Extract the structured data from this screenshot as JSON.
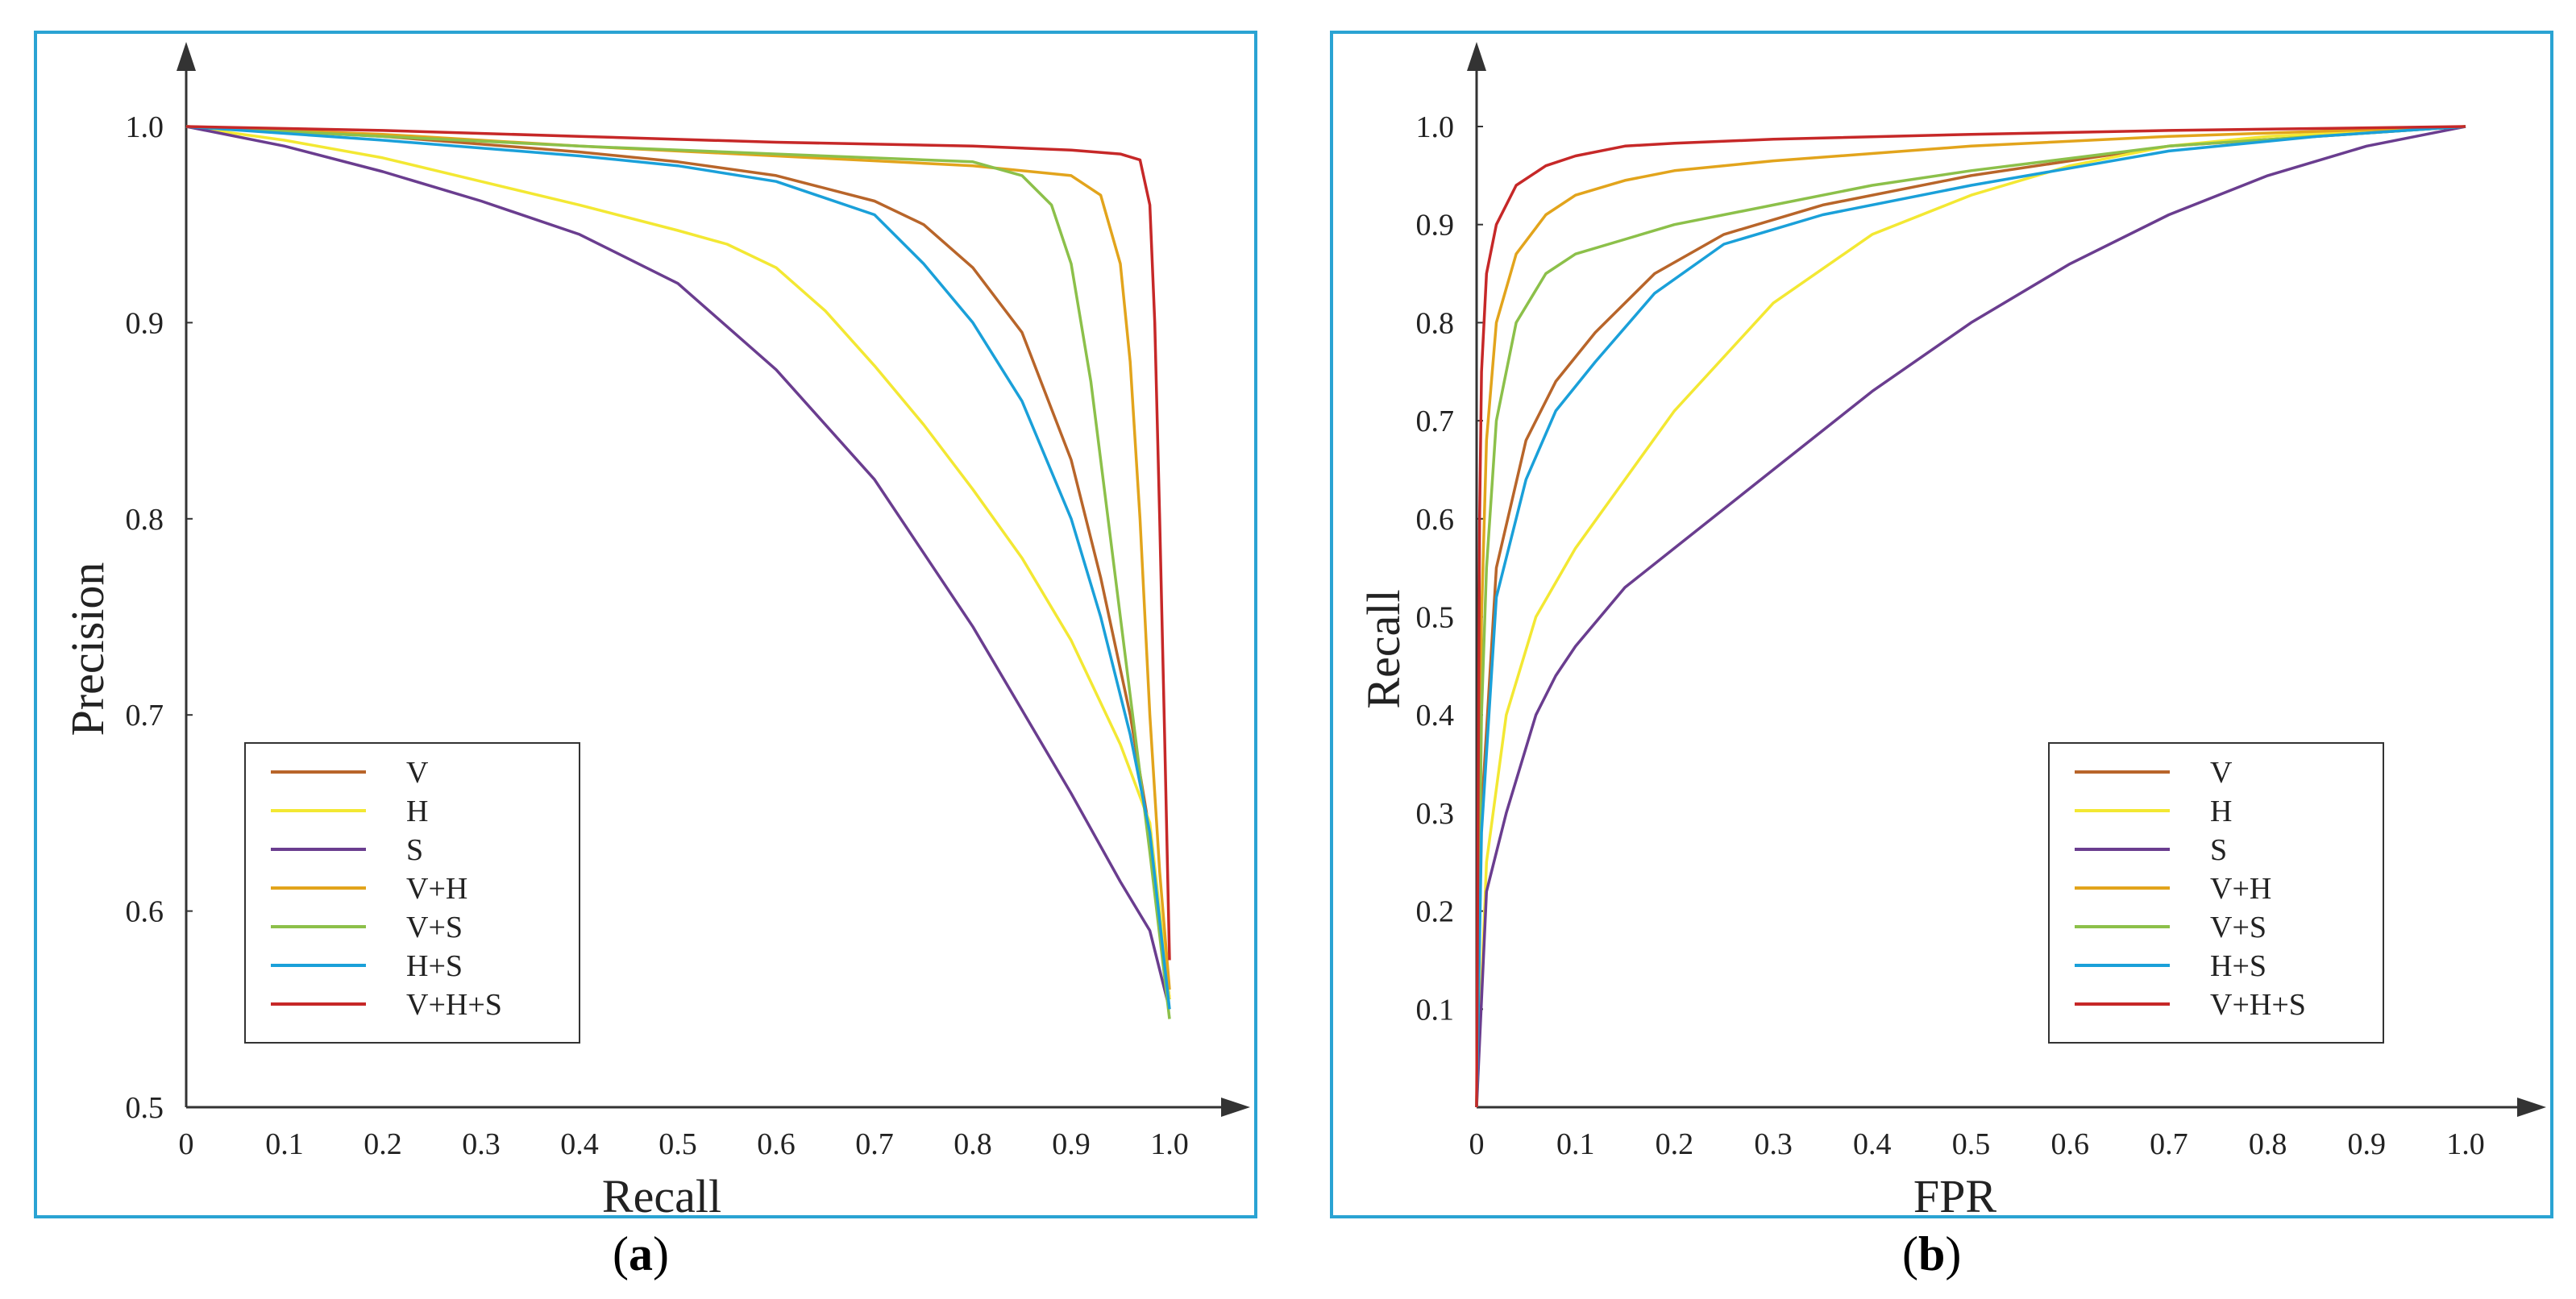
{
  "captions": [
    {
      "open": "(",
      "letter": "a",
      "close": ")"
    },
    {
      "open": "(",
      "letter": "b",
      "close": ")"
    }
  ],
  "chart_data": [
    {
      "type": "line",
      "xlabel": "Recall",
      "ylabel": "Precision",
      "xlim": [
        0,
        1.0
      ],
      "ylim": [
        0.5,
        1.0
      ],
      "x_ticks": [
        "0",
        "0.1",
        "0.2",
        "0.3",
        "0.4",
        "0.5",
        "0.6",
        "0.7",
        "0.8",
        "0.9",
        "1.0"
      ],
      "y_ticks": [
        "0.5",
        "0.6",
        "0.7",
        "0.8",
        "0.9",
        "1.0"
      ],
      "grid": false,
      "legend_position": "bottom-left",
      "series": [
        {
          "name": "V",
          "color": "#b8652a",
          "x": [
            0,
            0.2,
            0.4,
            0.5,
            0.6,
            0.7,
            0.75,
            0.8,
            0.85,
            0.9,
            0.93,
            0.96,
            0.98,
            1.0
          ],
          "y": [
            1.0,
            0.995,
            0.987,
            0.982,
            0.975,
            0.962,
            0.95,
            0.928,
            0.895,
            0.83,
            0.77,
            0.7,
            0.64,
            0.555
          ]
        },
        {
          "name": "H",
          "color": "#f3e833",
          "x": [
            0,
            0.1,
            0.2,
            0.3,
            0.4,
            0.5,
            0.55,
            0.6,
            0.65,
            0.7,
            0.75,
            0.8,
            0.85,
            0.9,
            0.95,
            0.98,
            1.0
          ],
          "y": [
            1.0,
            0.993,
            0.984,
            0.972,
            0.96,
            0.947,
            0.94,
            0.928,
            0.906,
            0.878,
            0.848,
            0.815,
            0.78,
            0.738,
            0.685,
            0.645,
            0.555
          ]
        },
        {
          "name": "S",
          "color": "#6a3d8f",
          "x": [
            0,
            0.1,
            0.2,
            0.3,
            0.4,
            0.5,
            0.6,
            0.7,
            0.8,
            0.9,
            0.95,
            0.98,
            1.0
          ],
          "y": [
            1.0,
            0.99,
            0.977,
            0.962,
            0.945,
            0.92,
            0.876,
            0.82,
            0.745,
            0.66,
            0.615,
            0.59,
            0.55
          ]
        },
        {
          "name": "V+H",
          "color": "#e2a41c",
          "x": [
            0,
            0.2,
            0.4,
            0.6,
            0.8,
            0.9,
            0.93,
            0.95,
            0.96,
            0.97,
            0.98,
            0.99,
            1.0
          ],
          "y": [
            1.0,
            0.996,
            0.99,
            0.985,
            0.98,
            0.975,
            0.965,
            0.93,
            0.88,
            0.8,
            0.7,
            0.62,
            0.56
          ]
        },
        {
          "name": "V+S",
          "color": "#8cc04a",
          "x": [
            0,
            0.2,
            0.4,
            0.6,
            0.8,
            0.85,
            0.88,
            0.9,
            0.92,
            0.94,
            0.96,
            0.98,
            1.0
          ],
          "y": [
            1.0,
            0.995,
            0.99,
            0.986,
            0.982,
            0.975,
            0.96,
            0.93,
            0.87,
            0.79,
            0.71,
            0.63,
            0.545
          ]
        },
        {
          "name": "H+S",
          "color": "#1aa0d9",
          "x": [
            0,
            0.2,
            0.4,
            0.5,
            0.6,
            0.7,
            0.75,
            0.8,
            0.85,
            0.9,
            0.93,
            0.96,
            0.98,
            1.0
          ],
          "y": [
            1.0,
            0.993,
            0.985,
            0.98,
            0.972,
            0.955,
            0.93,
            0.9,
            0.86,
            0.8,
            0.75,
            0.69,
            0.64,
            0.55
          ]
        },
        {
          "name": "V+H+S",
          "color": "#c62828",
          "x": [
            0,
            0.2,
            0.4,
            0.6,
            0.8,
            0.9,
            0.95,
            0.97,
            0.98,
            0.985,
            0.99,
            0.995,
            1.0
          ],
          "y": [
            1.0,
            0.998,
            0.995,
            0.992,
            0.99,
            0.988,
            0.986,
            0.983,
            0.96,
            0.9,
            0.8,
            0.69,
            0.575
          ]
        }
      ]
    },
    {
      "type": "line",
      "xlabel": "FPR",
      "ylabel": "Recall",
      "xlim": [
        0,
        1.0
      ],
      "ylim": [
        0,
        1.0
      ],
      "x_ticks": [
        "0",
        "0.1",
        "0.2",
        "0.3",
        "0.4",
        "0.5",
        "0.6",
        "0.7",
        "0.8",
        "0.9",
        "1.0"
      ],
      "y_ticks": [
        "0.1",
        "0.2",
        "0.3",
        "0.4",
        "0.5",
        "0.6",
        "0.7",
        "0.8",
        "0.9",
        "1.0"
      ],
      "grid": false,
      "legend_position": "bottom-right",
      "series": [
        {
          "name": "V",
          "color": "#b8652a",
          "x": [
            0,
            0.005,
            0.02,
            0.05,
            0.08,
            0.12,
            0.18,
            0.25,
            0.35,
            0.5,
            0.7,
            0.85,
            1.0
          ],
          "y": [
            0,
            0.3,
            0.55,
            0.68,
            0.74,
            0.79,
            0.85,
            0.89,
            0.92,
            0.95,
            0.98,
            0.99,
            1.0
          ]
        },
        {
          "name": "H",
          "color": "#f3e833",
          "x": [
            0,
            0.01,
            0.03,
            0.06,
            0.1,
            0.15,
            0.2,
            0.3,
            0.4,
            0.5,
            0.6,
            0.7,
            0.8,
            0.9,
            1.0
          ],
          "y": [
            0,
            0.25,
            0.4,
            0.5,
            0.57,
            0.64,
            0.71,
            0.82,
            0.89,
            0.93,
            0.96,
            0.98,
            0.99,
            0.995,
            1.0
          ]
        },
        {
          "name": "S",
          "color": "#6a3d8f",
          "x": [
            0,
            0.01,
            0.03,
            0.06,
            0.08,
            0.1,
            0.15,
            0.2,
            0.3,
            0.4,
            0.5,
            0.6,
            0.7,
            0.8,
            0.9,
            1.0
          ],
          "y": [
            0,
            0.22,
            0.3,
            0.4,
            0.44,
            0.47,
            0.53,
            0.57,
            0.65,
            0.73,
            0.8,
            0.86,
            0.91,
            0.95,
            0.98,
            1.0
          ]
        },
        {
          "name": "V+H",
          "color": "#e2a41c",
          "x": [
            0,
            0.005,
            0.01,
            0.02,
            0.04,
            0.07,
            0.1,
            0.15,
            0.2,
            0.3,
            0.5,
            0.7,
            1.0
          ],
          "y": [
            0,
            0.5,
            0.68,
            0.8,
            0.87,
            0.91,
            0.93,
            0.945,
            0.955,
            0.965,
            0.98,
            0.99,
            1.0
          ]
        },
        {
          "name": "V+S",
          "color": "#8cc04a",
          "x": [
            0,
            0.005,
            0.01,
            0.02,
            0.04,
            0.07,
            0.1,
            0.15,
            0.2,
            0.3,
            0.4,
            0.5,
            0.7,
            1.0
          ],
          "y": [
            0,
            0.4,
            0.55,
            0.7,
            0.8,
            0.85,
            0.87,
            0.885,
            0.9,
            0.92,
            0.94,
            0.955,
            0.98,
            1.0
          ]
        },
        {
          "name": "H+S",
          "color": "#1aa0d9",
          "x": [
            0,
            0.005,
            0.02,
            0.05,
            0.08,
            0.12,
            0.18,
            0.25,
            0.35,
            0.5,
            0.7,
            0.85,
            1.0
          ],
          "y": [
            0,
            0.28,
            0.52,
            0.64,
            0.71,
            0.76,
            0.83,
            0.88,
            0.91,
            0.94,
            0.975,
            0.99,
            1.0
          ]
        },
        {
          "name": "V+H+S",
          "color": "#c62828",
          "x": [
            0,
            0.003,
            0.005,
            0.01,
            0.02,
            0.04,
            0.07,
            0.1,
            0.15,
            0.2,
            0.3,
            0.5,
            0.7,
            1.0
          ],
          "y": [
            0,
            0.6,
            0.75,
            0.85,
            0.9,
            0.94,
            0.96,
            0.97,
            0.98,
            0.983,
            0.987,
            0.992,
            0.996,
            1.0
          ]
        }
      ]
    }
  ]
}
